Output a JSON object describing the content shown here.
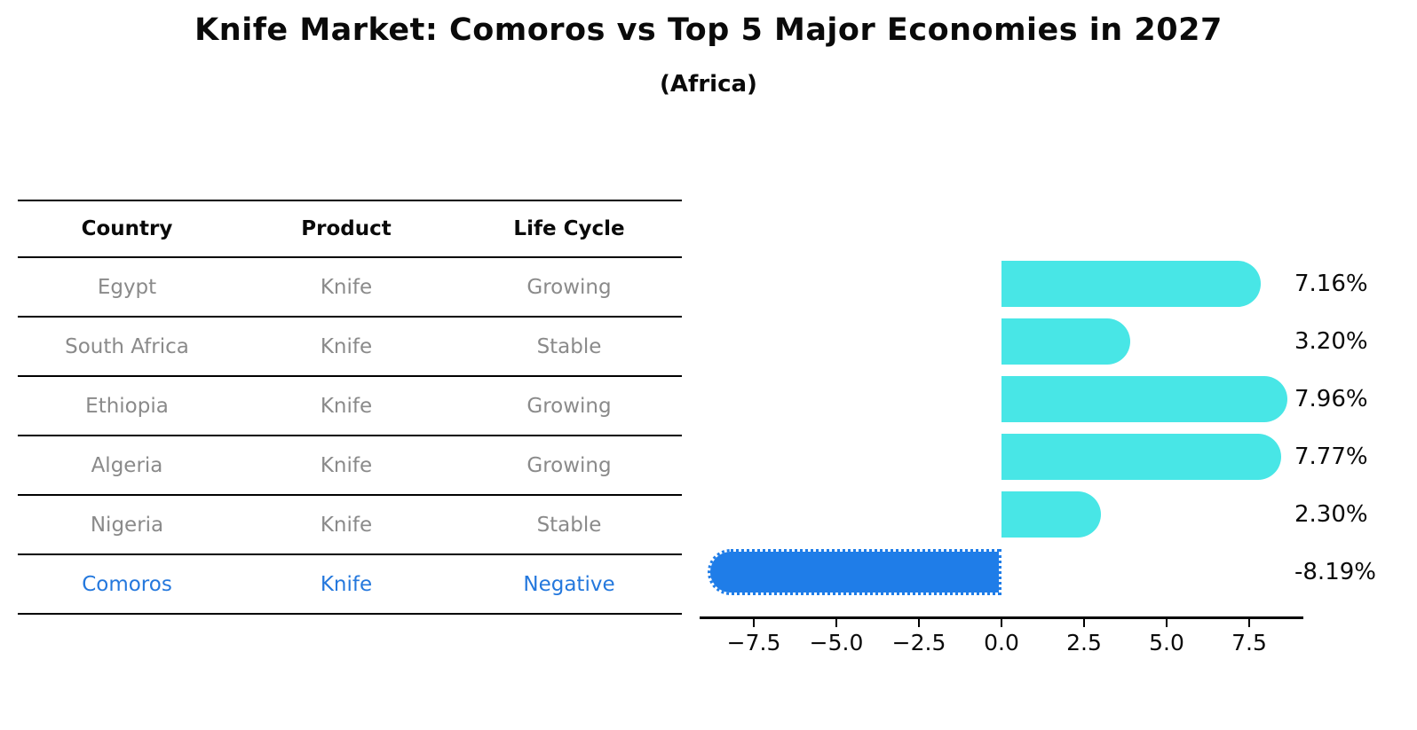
{
  "title": "Knife Market: Comoros vs Top 5 Major Economies in 2027",
  "subtitle": "(Africa)",
  "table": {
    "columns": [
      "Country",
      "Product",
      "Life Cycle"
    ],
    "rows": [
      {
        "country": "Egypt",
        "product": "Knife",
        "life_cycle": "Growing",
        "highlight": false
      },
      {
        "country": "South Africa",
        "product": "Knife",
        "life_cycle": "Stable",
        "highlight": false
      },
      {
        "country": "Ethiopia",
        "product": "Knife",
        "life_cycle": "Growing",
        "highlight": false
      },
      {
        "country": "Algeria",
        "product": "Knife",
        "life_cycle": "Growing",
        "highlight": false
      },
      {
        "country": "Nigeria",
        "product": "Knife",
        "life_cycle": "Stable",
        "highlight": false
      },
      {
        "country": "Comoros",
        "product": "Knife",
        "life_cycle": "Negative",
        "highlight": true
      }
    ]
  },
  "chart_data": {
    "type": "bar",
    "orientation": "horizontal",
    "categories": [
      "Egypt",
      "South Africa",
      "Ethiopia",
      "Algeria",
      "Nigeria",
      "Comoros"
    ],
    "values": [
      7.16,
      3.2,
      7.96,
      7.77,
      2.3,
      -8.19
    ],
    "value_labels": [
      "7.16%",
      "3.20%",
      "7.96%",
      "7.77%",
      "2.30%",
      "-8.19%"
    ],
    "x_ticks": [
      -7.5,
      -5.0,
      -2.5,
      0.0,
      2.5,
      5.0,
      7.5
    ],
    "x_tick_labels": [
      "−7.5",
      "−5.0",
      "−2.5",
      "0.0",
      "2.5",
      "5.0",
      "7.5"
    ],
    "xlim": [
      -9.14,
      9.14
    ],
    "highlight_index": 5,
    "grid": false,
    "legend": false,
    "title": "Knife Market: Comoros vs Top 5 Major Economies in 2027",
    "xlabel": "",
    "ylabel": ""
  },
  "colors": {
    "bar_positive": "#48e6e6",
    "bar_negative": "#1f7de8",
    "highlight_text": "#2478dd",
    "row_text": "#8a8a8a",
    "axis": "#000000"
  }
}
